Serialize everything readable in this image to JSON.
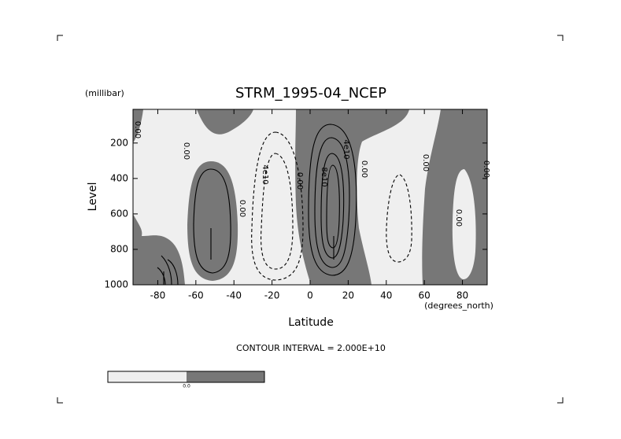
{
  "chart_data": {
    "type": "contour",
    "title": "STRM_1995-04_NCEP",
    "x_label": "Latitude",
    "x_units": "(degrees_north)",
    "y_label": "Level",
    "y_units": "(millibar)",
    "xlim": [
      -93,
      93
    ],
    "xticks": [
      -80,
      -60,
      -40,
      -20,
      0,
      20,
      40,
      60,
      80
    ],
    "ylim": [
      1000,
      10
    ],
    "yticks": [
      200,
      400,
      600,
      800,
      1000
    ],
    "contour_labels": [
      "0.00",
      "0.00",
      "0.00",
      "4e10",
      "0.00",
      "8e10",
      "4e10",
      "0.00",
      "0.00",
      "0.00",
      "0.00"
    ],
    "contour_interval": "CONTOUR INTERVAL = 2.000E+10",
    "colorbar": {
      "colors": [
        "#efefef",
        "#777777"
      ],
      "labels": [
        "0.0"
      ]
    }
  }
}
